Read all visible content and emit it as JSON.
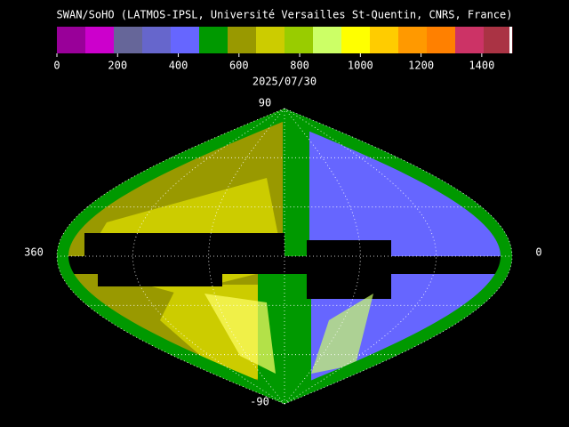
{
  "title": "SWAN/SoHO (LATMOS-IPSL, Université Versailles St-Quentin, CNRS, France)",
  "colorbar": {
    "lim": [
      0,
      1500
    ],
    "ticks": [
      0,
      200,
      400,
      600,
      800,
      1000,
      1200,
      1400
    ],
    "colors": [
      "#990099",
      "#cc00cc",
      "#666699",
      "#6666cc",
      "#6666ff",
      "#009900",
      "#999900",
      "#cccc00",
      "#99cc00",
      "#ccff66",
      "#ffff00",
      "#ffcc00",
      "#ff9900",
      "#ff8000",
      "#cc3366",
      "#aa3344"
    ]
  },
  "date": "2025/07/30",
  "map": {
    "top_label": "90",
    "bottom_label": "-90",
    "left_label": "360",
    "right_label": "0"
  }
}
